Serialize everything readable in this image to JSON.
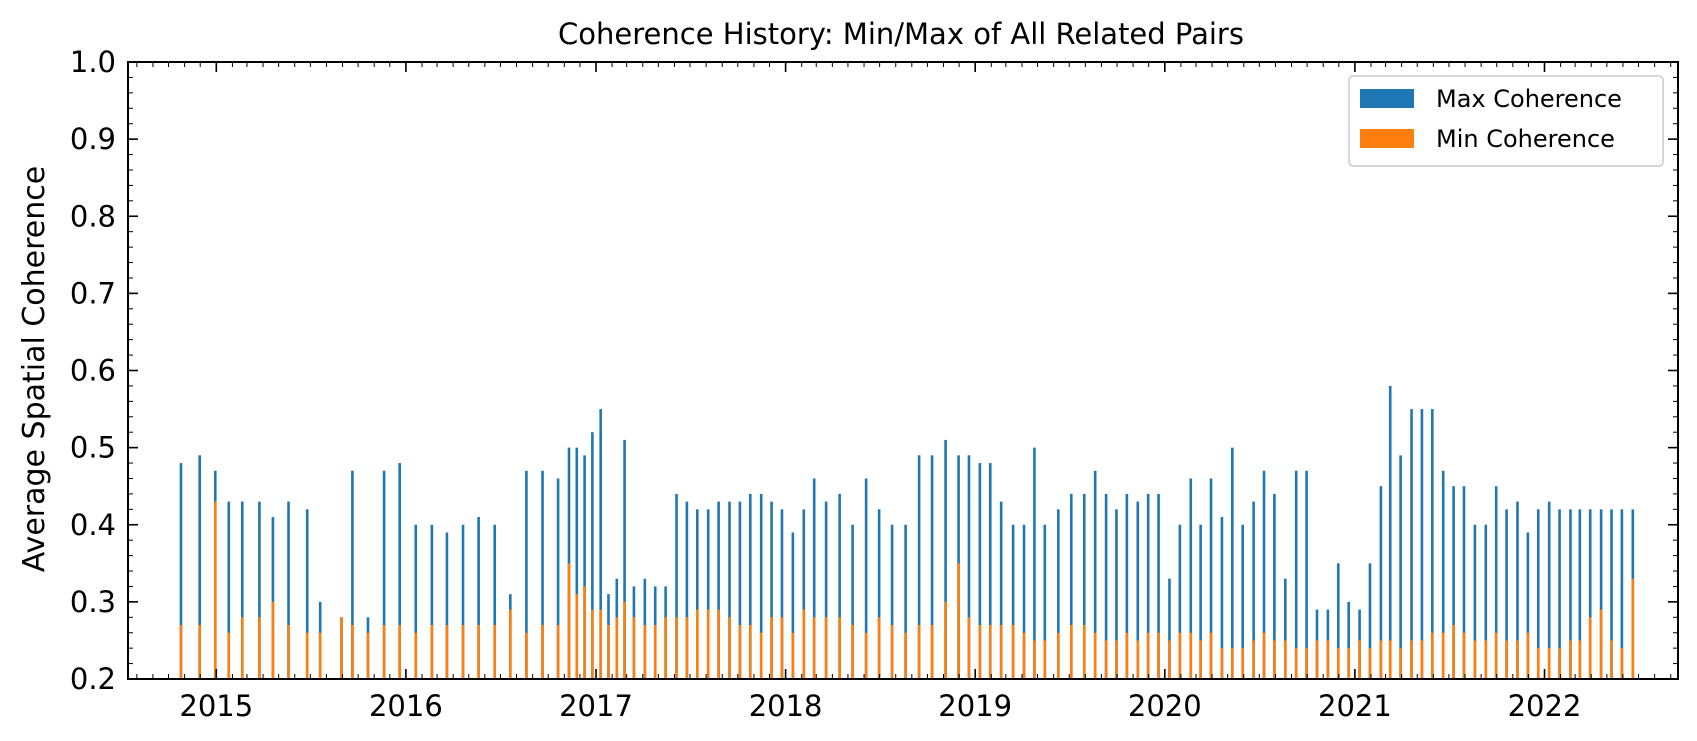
{
  "chart_data": {
    "type": "bar",
    "title": "Coherence History: Min/Max of All Related Pairs",
    "xlabel": "",
    "ylabel": "Average Spatial Coherence",
    "ylim": [
      0.2,
      1.0
    ],
    "xlim": [
      "2014-07-15",
      "2022-09-15"
    ],
    "y_ticks": [
      "0.2",
      "0.3",
      "0.4",
      "0.5",
      "0.6",
      "0.7",
      "0.8",
      "0.9",
      "1.0"
    ],
    "x_ticks": [
      "2015",
      "2016",
      "2017",
      "2018",
      "2019",
      "2020",
      "2021",
      "2022"
    ],
    "grid": false,
    "legend_position": "top-right",
    "series": [
      {
        "name": "Max Coherence",
        "color": "#1f77b4",
        "x": [
          "2014-10-25",
          "2014-11-30",
          "2014-12-30",
          "2015-01-25",
          "2015-02-20",
          "2015-03-25",
          "2015-04-20",
          "2015-05-20",
          "2015-06-25",
          "2015-07-20",
          "2015-08-30",
          "2015-09-20",
          "2015-10-20",
          "2015-11-20",
          "2015-12-20",
          "2016-01-20",
          "2016-02-20",
          "2016-03-20",
          "2016-04-20",
          "2016-05-20",
          "2016-06-20",
          "2016-07-20",
          "2016-08-20",
          "2016-09-20",
          "2016-10-20",
          "2016-11-10",
          "2016-11-25",
          "2016-12-10",
          "2016-12-25",
          "2017-01-10",
          "2017-01-25",
          "2017-02-10",
          "2017-02-25",
          "2017-03-15",
          "2017-04-05",
          "2017-04-25",
          "2017-05-15",
          "2017-06-05",
          "2017-06-25",
          "2017-07-15",
          "2017-08-05",
          "2017-08-25",
          "2017-09-15",
          "2017-10-05",
          "2017-10-25",
          "2017-11-15",
          "2017-12-05",
          "2017-12-25",
          "2018-01-15",
          "2018-02-05",
          "2018-02-25",
          "2018-03-20",
          "2018-04-15",
          "2018-05-10",
          "2018-06-05",
          "2018-06-30",
          "2018-07-25",
          "2018-08-20",
          "2018-09-15",
          "2018-10-10",
          "2018-11-05",
          "2018-11-30",
          "2018-12-20",
          "2019-01-10",
          "2019-01-30",
          "2019-02-20",
          "2019-03-15",
          "2019-04-05",
          "2019-04-25",
          "2019-05-15",
          "2019-06-10",
          "2019-07-05",
          "2019-07-30",
          "2019-08-20",
          "2019-09-10",
          "2019-09-30",
          "2019-10-20",
          "2019-11-10",
          "2019-11-30",
          "2019-12-20",
          "2020-01-10",
          "2020-01-30",
          "2020-02-20",
          "2020-03-10",
          "2020-03-30",
          "2020-04-20",
          "2020-05-10",
          "2020-05-30",
          "2020-06-20",
          "2020-07-10",
          "2020-07-30",
          "2020-08-20",
          "2020-09-10",
          "2020-09-30",
          "2020-10-20",
          "2020-11-10",
          "2020-11-30",
          "2020-12-20",
          "2021-01-10",
          "2021-01-30",
          "2021-02-20",
          "2021-03-10",
          "2021-03-30",
          "2021-04-20",
          "2021-05-10",
          "2021-05-30",
          "2021-06-20",
          "2021-07-10",
          "2021-07-30",
          "2021-08-20",
          "2021-09-10",
          "2021-09-30",
          "2021-10-20",
          "2021-11-10",
          "2021-11-30",
          "2021-12-20",
          "2022-01-10",
          "2022-01-30",
          "2022-02-20",
          "2022-03-10",
          "2022-03-30",
          "2022-04-20",
          "2022-05-10",
          "2022-05-30",
          "2022-06-20"
        ],
        "values": [
          0.48,
          0.49,
          0.47,
          0.43,
          0.43,
          0.43,
          0.41,
          0.43,
          0.42,
          0.3,
          0.28,
          0.47,
          0.28,
          0.47,
          0.48,
          0.4,
          0.4,
          0.39,
          0.4,
          0.41,
          0.4,
          0.31,
          0.47,
          0.47,
          0.46,
          0.5,
          0.5,
          0.49,
          0.52,
          0.55,
          0.31,
          0.33,
          0.51,
          0.32,
          0.33,
          0.32,
          0.32,
          0.44,
          0.43,
          0.42,
          0.42,
          0.43,
          0.43,
          0.43,
          0.44,
          0.44,
          0.43,
          0.42,
          0.39,
          0.42,
          0.46,
          0.43,
          0.44,
          0.4,
          0.46,
          0.42,
          0.4,
          0.4,
          0.49,
          0.49,
          0.51,
          0.49,
          0.49,
          0.48,
          0.48,
          0.43,
          0.4,
          0.4,
          0.5,
          0.4,
          0.42,
          0.44,
          0.44,
          0.47,
          0.44,
          0.42,
          0.44,
          0.43,
          0.44,
          0.44,
          0.33,
          0.4,
          0.46,
          0.4,
          0.46,
          0.41,
          0.5,
          0.4,
          0.43,
          0.47,
          0.44,
          0.33,
          0.47,
          0.47,
          0.29,
          0.29,
          0.35,
          0.3,
          0.29,
          0.35,
          0.45,
          0.58,
          0.49,
          0.55,
          0.55,
          0.55,
          0.47,
          0.45,
          0.45,
          0.4,
          0.4,
          0.45,
          0.42,
          0.43,
          0.39,
          0.42,
          0.43,
          0.42,
          0.42,
          0.42,
          0.42,
          0.42,
          0.42,
          0.42,
          0.42
        ],
        "baseline": 0.2
      },
      {
        "name": "Min Coherence",
        "color": "#ff7f0e",
        "x": [
          "2014-10-25",
          "2014-11-30",
          "2014-12-30",
          "2015-01-25",
          "2015-02-20",
          "2015-03-25",
          "2015-04-20",
          "2015-05-20",
          "2015-06-25",
          "2015-07-20",
          "2015-08-30",
          "2015-09-20",
          "2015-10-20",
          "2015-11-20",
          "2015-12-20",
          "2016-01-20",
          "2016-02-20",
          "2016-03-20",
          "2016-04-20",
          "2016-05-20",
          "2016-06-20",
          "2016-07-20",
          "2016-08-20",
          "2016-09-20",
          "2016-10-20",
          "2016-11-10",
          "2016-11-25",
          "2016-12-10",
          "2016-12-25",
          "2017-01-10",
          "2017-01-25",
          "2017-02-10",
          "2017-02-25",
          "2017-03-15",
          "2017-04-05",
          "2017-04-25",
          "2017-05-15",
          "2017-06-05",
          "2017-06-25",
          "2017-07-15",
          "2017-08-05",
          "2017-08-25",
          "2017-09-15",
          "2017-10-05",
          "2017-10-25",
          "2017-11-15",
          "2017-12-05",
          "2017-12-25",
          "2018-01-15",
          "2018-02-05",
          "2018-02-25",
          "2018-03-20",
          "2018-04-15",
          "2018-05-10",
          "2018-06-05",
          "2018-06-30",
          "2018-07-25",
          "2018-08-20",
          "2018-09-15",
          "2018-10-10",
          "2018-11-05",
          "2018-11-30",
          "2018-12-20",
          "2019-01-10",
          "2019-01-30",
          "2019-02-20",
          "2019-03-15",
          "2019-04-05",
          "2019-04-25",
          "2019-05-15",
          "2019-06-10",
          "2019-07-05",
          "2019-07-30",
          "2019-08-20",
          "2019-09-10",
          "2019-09-30",
          "2019-10-20",
          "2019-11-10",
          "2019-11-30",
          "2019-12-20",
          "2020-01-10",
          "2020-01-30",
          "2020-02-20",
          "2020-03-10",
          "2020-03-30",
          "2020-04-20",
          "2020-05-10",
          "2020-05-30",
          "2020-06-20",
          "2020-07-10",
          "2020-07-30",
          "2020-08-20",
          "2020-09-10",
          "2020-09-30",
          "2020-10-20",
          "2020-11-10",
          "2020-11-30",
          "2020-12-20",
          "2021-01-10",
          "2021-01-30",
          "2021-02-20",
          "2021-03-10",
          "2021-03-30",
          "2021-04-20",
          "2021-05-10",
          "2021-05-30",
          "2021-06-20",
          "2021-07-10",
          "2021-07-30",
          "2021-08-20",
          "2021-09-10",
          "2021-09-30",
          "2021-10-20",
          "2021-11-10",
          "2021-11-30",
          "2021-12-20",
          "2022-01-10",
          "2022-01-30",
          "2022-02-20",
          "2022-03-10",
          "2022-03-30",
          "2022-04-20",
          "2022-05-10",
          "2022-05-30",
          "2022-06-20"
        ],
        "values": [
          0.27,
          0.27,
          0.43,
          0.26,
          0.28,
          0.28,
          0.3,
          0.27,
          0.26,
          0.26,
          0.28,
          0.27,
          0.26,
          0.27,
          0.27,
          0.26,
          0.27,
          0.27,
          0.27,
          0.27,
          0.27,
          0.29,
          0.26,
          0.27,
          0.27,
          0.35,
          0.31,
          0.32,
          0.29,
          0.29,
          0.27,
          0.28,
          0.3,
          0.28,
          0.27,
          0.27,
          0.28,
          0.28,
          0.28,
          0.29,
          0.29,
          0.29,
          0.28,
          0.27,
          0.27,
          0.26,
          0.28,
          0.28,
          0.26,
          0.29,
          0.28,
          0.28,
          0.28,
          0.27,
          0.26,
          0.28,
          0.27,
          0.26,
          0.27,
          0.27,
          0.3,
          0.35,
          0.28,
          0.27,
          0.27,
          0.27,
          0.27,
          0.26,
          0.25,
          0.25,
          0.26,
          0.27,
          0.27,
          0.26,
          0.25,
          0.25,
          0.26,
          0.25,
          0.26,
          0.26,
          0.25,
          0.26,
          0.26,
          0.25,
          0.26,
          0.24,
          0.24,
          0.24,
          0.25,
          0.26,
          0.25,
          0.25,
          0.24,
          0.24,
          0.25,
          0.25,
          0.24,
          0.24,
          0.25,
          0.24,
          0.25,
          0.25,
          0.24,
          0.25,
          0.25,
          0.26,
          0.26,
          0.27,
          0.26,
          0.25,
          0.25,
          0.26,
          0.25,
          0.25,
          0.26,
          0.24,
          0.24,
          0.24,
          0.25,
          0.25,
          0.28,
          0.29,
          0.25,
          0.24,
          0.33
        ],
        "baseline": 0.2
      }
    ]
  }
}
